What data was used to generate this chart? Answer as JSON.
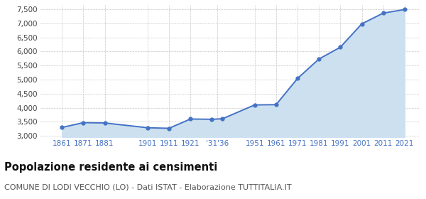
{
  "years": [
    1861,
    1871,
    1881,
    1901,
    1911,
    1921,
    1931,
    1936,
    1951,
    1961,
    1971,
    1981,
    1991,
    2001,
    2011,
    2021
  ],
  "population": [
    3300,
    3470,
    3460,
    3290,
    3270,
    3600,
    3590,
    3610,
    4100,
    4110,
    5040,
    5730,
    6150,
    6980,
    7360,
    7490
  ],
  "ylim": [
    2950,
    7650
  ],
  "yticks": [
    3000,
    3500,
    4000,
    4500,
    5000,
    5500,
    6000,
    6500,
    7000,
    7500
  ],
  "xlim_left": 1851,
  "xlim_right": 2028,
  "line_color": "#4472c4",
  "fill_color": "#cce0f0",
  "marker_color": "#4472c4",
  "grid_color": "#c8c8c8",
  "background_color": "#ffffff",
  "title": "Popolazione residente ai censimenti",
  "subtitle": "COMUNE DI LODI VECCHIO (LO) - Dati ISTAT - Elaborazione TUTTITALIA.IT",
  "title_fontsize": 10.5,
  "subtitle_fontsize": 8,
  "x_tick_pos": [
    1861,
    1871,
    1881,
    1901,
    1911,
    1921,
    1933.5,
    1951,
    1961,
    1971,
    1981,
    1991,
    2001,
    2011,
    2021
  ],
  "x_tick_lab": [
    "1861",
    "1871",
    "1881",
    "1901",
    "1911",
    "1921",
    "‱36",
    "1951",
    "1961",
    "1971",
    "1981",
    "1991",
    "2001",
    "2011",
    "2021"
  ]
}
